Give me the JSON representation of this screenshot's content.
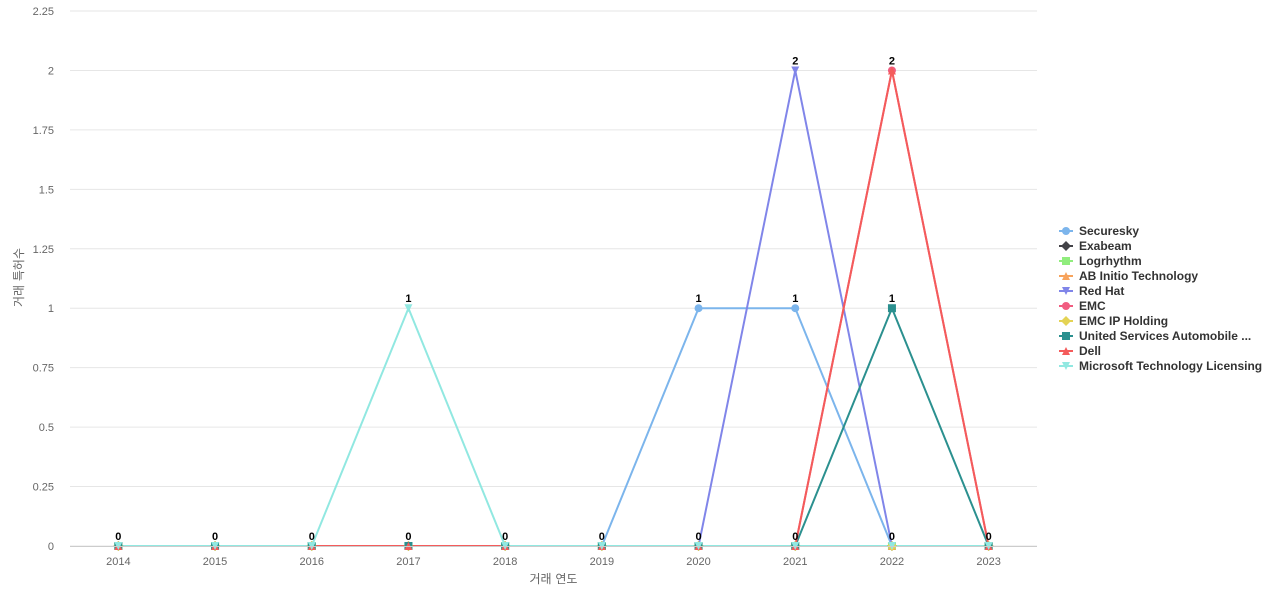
{
  "chart_data": {
    "type": "line",
    "title": "",
    "xlabel": "거래 연도",
    "ylabel": "거래 특허수",
    "x": [
      2014,
      2015,
      2016,
      2017,
      2018,
      2019,
      2020,
      2021,
      2022,
      2023
    ],
    "ylim": [
      0,
      2.25
    ],
    "yticks": [
      "0",
      "0.25",
      "0.5",
      "0.75",
      "1",
      "1.25",
      "1.5",
      "1.75",
      "2",
      "2.25"
    ],
    "grid": true,
    "legend_position": "right",
    "series": [
      {
        "name": "Securesky",
        "color": "#7cb5ec",
        "marker": "circle",
        "values": [
          0,
          0,
          0,
          0,
          0,
          0,
          1,
          1,
          0,
          0
        ]
      },
      {
        "name": "Exabeam",
        "color": "#434348",
        "marker": "diamond",
        "values": [
          0,
          0,
          0,
          0,
          0,
          0,
          0,
          0,
          0,
          0
        ]
      },
      {
        "name": "Logrhythm",
        "color": "#90ed7d",
        "marker": "square",
        "values": [
          0,
          0,
          0,
          0,
          0,
          0,
          0,
          0,
          0,
          0
        ]
      },
      {
        "name": "AB Initio Technology",
        "color": "#f7a35c",
        "marker": "triangle",
        "values": [
          0,
          0,
          0,
          0,
          0,
          0,
          0,
          0,
          0,
          0
        ]
      },
      {
        "name": "Red Hat",
        "color": "#8085e9",
        "marker": "triangle-down",
        "values": [
          0,
          0,
          0,
          0,
          0,
          0,
          0,
          2,
          0,
          0
        ]
      },
      {
        "name": "EMC",
        "color": "#f15c80",
        "marker": "circle",
        "values": [
          0,
          0,
          0,
          0,
          0,
          0,
          0,
          0,
          2,
          0
        ]
      },
      {
        "name": "EMC IP Holding",
        "color": "#e4d354",
        "marker": "diamond",
        "values": [
          0,
          0,
          0,
          0,
          0,
          0,
          0,
          0,
          0,
          0
        ]
      },
      {
        "name": "United Services Automobile ...",
        "color": "#2b908f",
        "marker": "square",
        "values": [
          0,
          0,
          0,
          0,
          0,
          0,
          0,
          0,
          1,
          0
        ]
      },
      {
        "name": "Dell",
        "color": "#f45b5b",
        "marker": "triangle",
        "values": [
          0,
          0,
          0,
          0,
          0,
          0,
          0,
          0,
          2,
          0
        ]
      },
      {
        "name": "Microsoft Technology Licensing",
        "color": "#91e8e1",
        "marker": "triangle-down",
        "values": [
          0,
          0,
          0,
          1,
          0,
          0,
          0,
          0,
          0,
          0
        ]
      }
    ],
    "data_labels": [
      {
        "x": 2014,
        "text": "0"
      },
      {
        "x": 2015,
        "text": "0"
      },
      {
        "x": 2016,
        "text": "0"
      },
      {
        "x": 2017,
        "text": "1"
      },
      {
        "x": 2017,
        "text": "0"
      },
      {
        "x": 2018,
        "text": "0"
      },
      {
        "x": 2019,
        "text": "0"
      },
      {
        "x": 2020,
        "text": "1"
      },
      {
        "x": 2020,
        "text": "0"
      },
      {
        "x": 2021,
        "text": "2"
      },
      {
        "x": 2021,
        "text": "1"
      },
      {
        "x": 2021,
        "text": "0"
      },
      {
        "x": 2022,
        "text": "2"
      },
      {
        "x": 2022,
        "text": "1"
      },
      {
        "x": 2022,
        "text": "0"
      },
      {
        "x": 2023,
        "text": "0"
      }
    ]
  }
}
